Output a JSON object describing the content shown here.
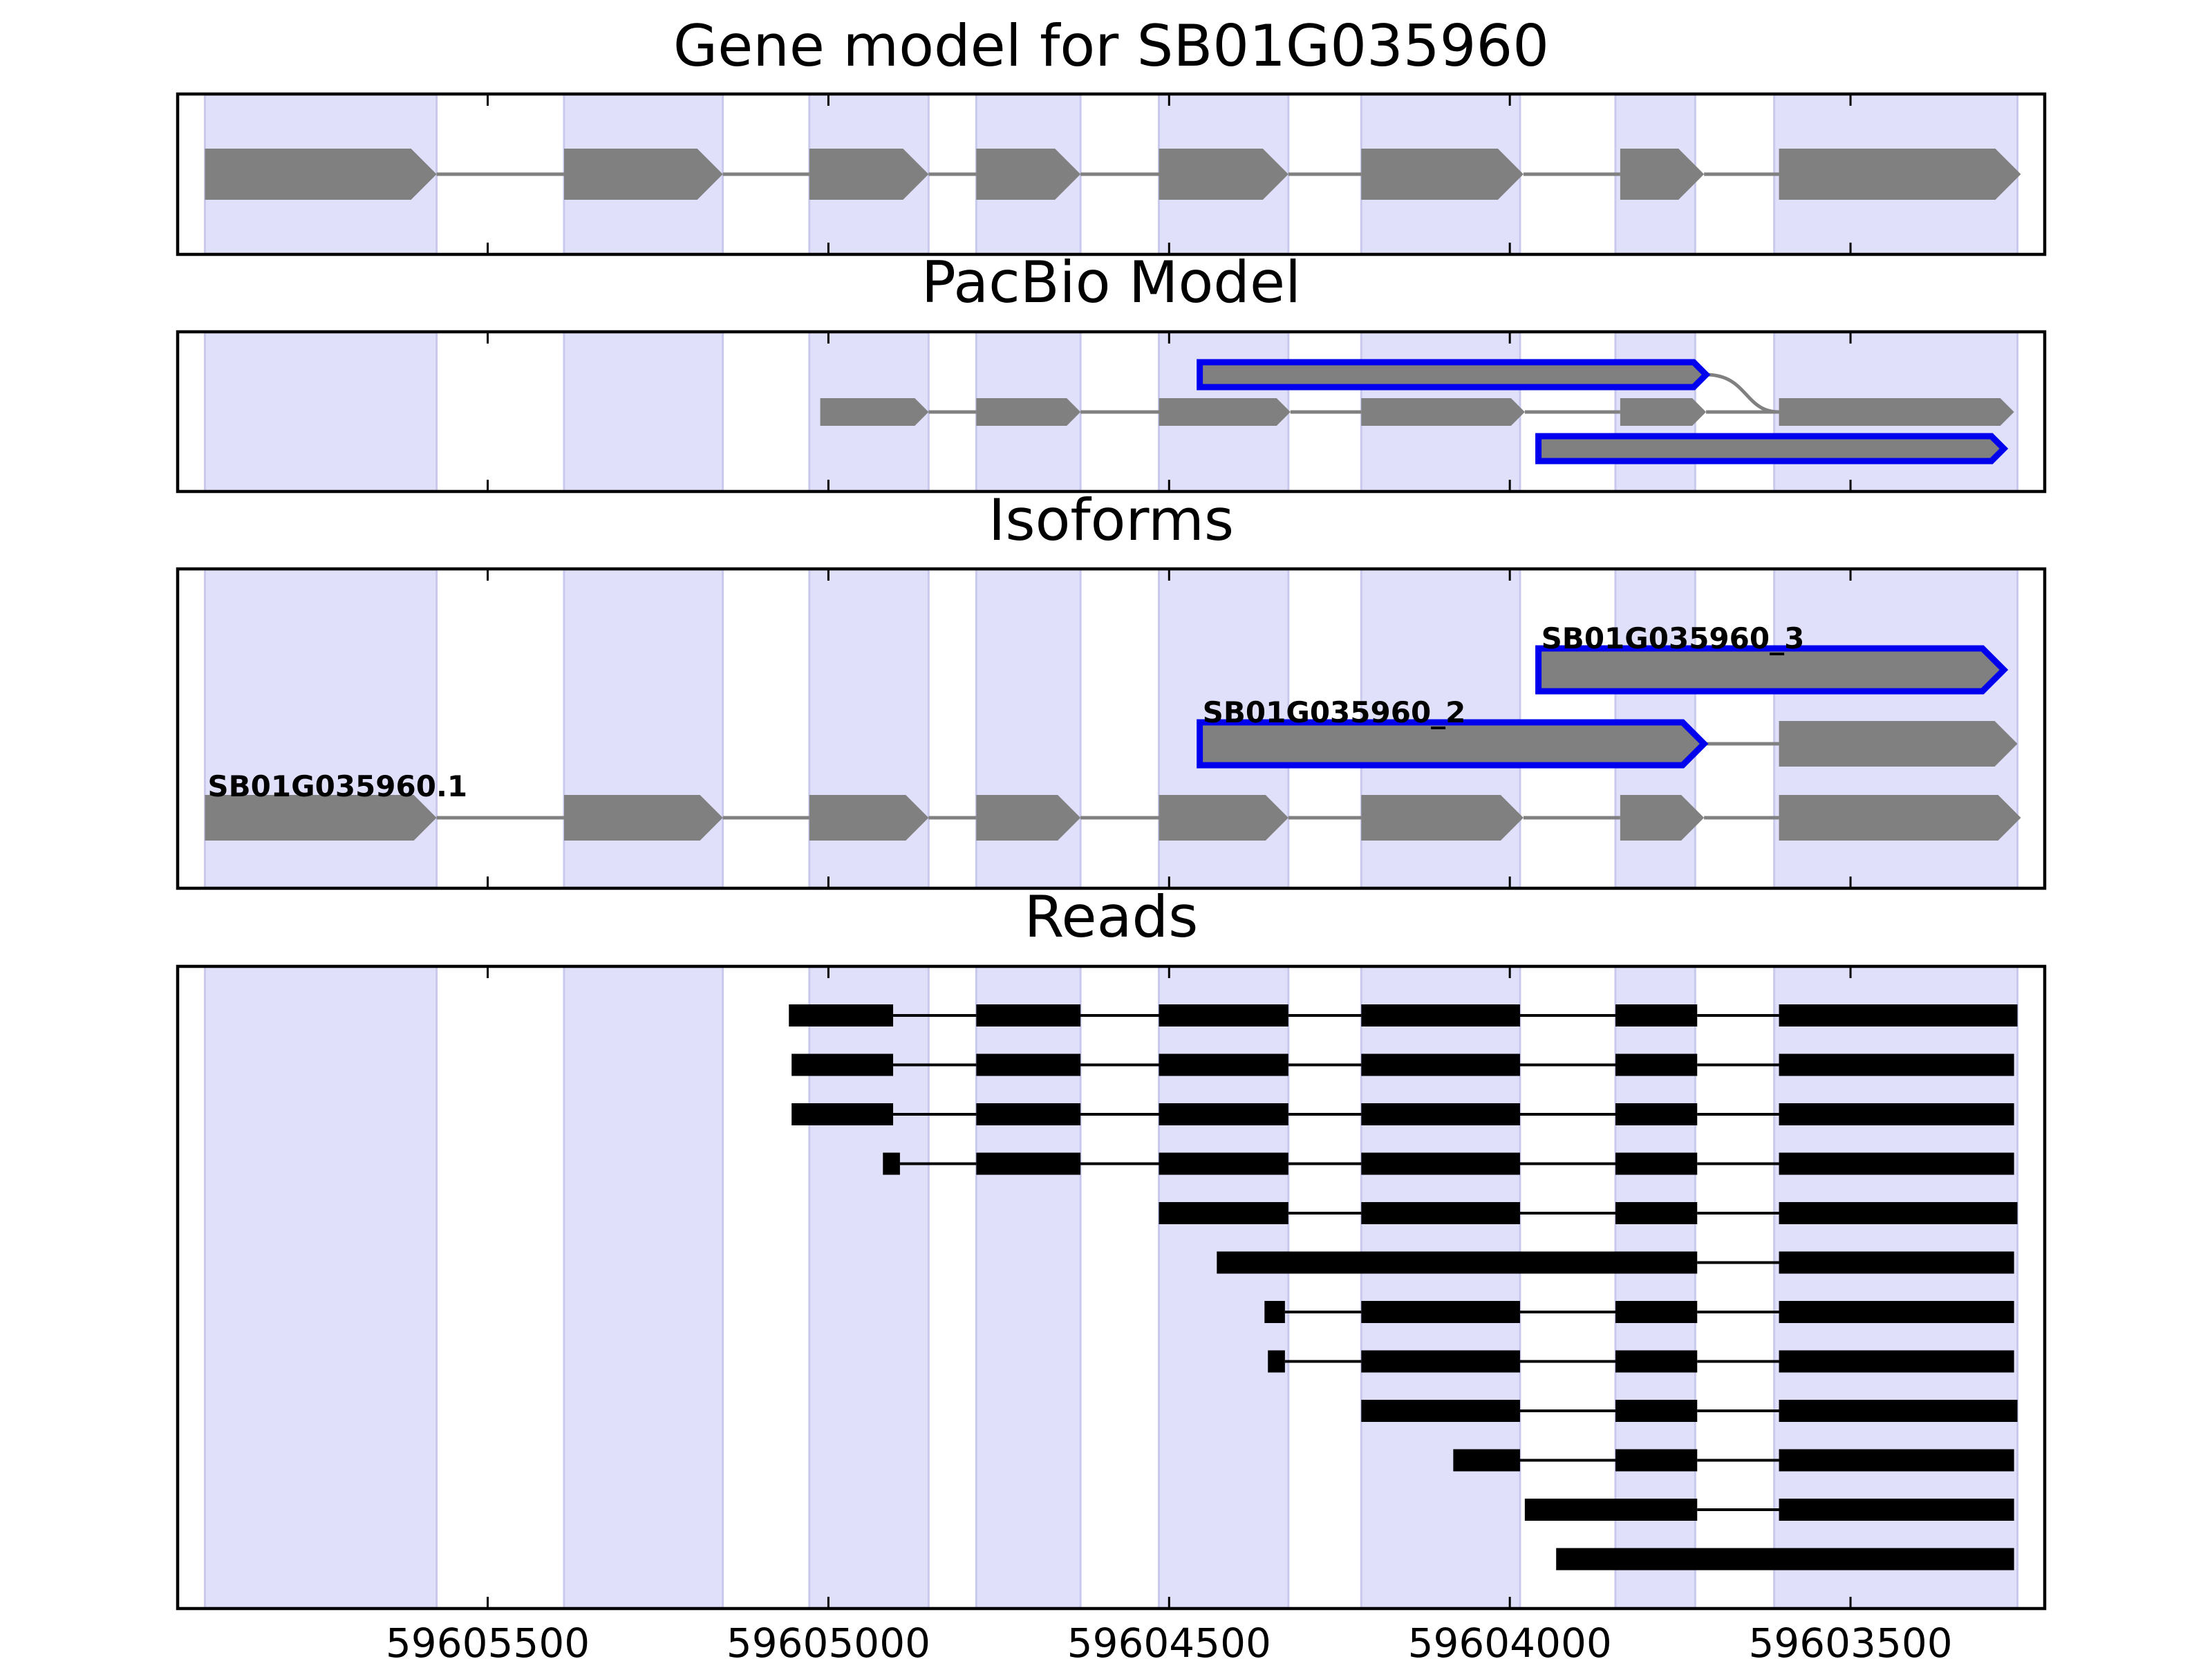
{
  "figure": {
    "panels": [
      {
        "id": "gene_model",
        "title": "Gene model for SB01G035960",
        "tracks": [
          {
            "label": "",
            "style": "model",
            "exons": [
              [
                59605915,
                59605575
              ],
              [
                59605388,
                59605155
              ],
              [
                59605028,
                59604853
              ],
              [
                59604783,
                59604630
              ],
              [
                59604515,
                59604325
              ],
              [
                59604218,
                59603980
              ],
              [
                59603838,
                59603715
              ],
              [
                59603605,
                59603250
              ]
            ]
          }
        ]
      },
      {
        "id": "pacbio_model",
        "title": "PacBio Model",
        "tracks": [
          {
            "label": "",
            "style": "model",
            "exons": [
              [
                59605012,
                59604853
              ],
              [
                59604783,
                59604630
              ],
              [
                59604515,
                59604322
              ],
              [
                59604218,
                59603978
              ],
              [
                59603838,
                59603712
              ],
              [
                59603605,
                59603260
              ]
            ]
          },
          {
            "label": "",
            "style": "highlight",
            "exons": [
              [
                59604455,
                59603712
              ]
            ],
            "splice_to": 59603605
          },
          {
            "label": "",
            "style": "highlight",
            "exons": [
              [
                59603958,
                59603275
              ]
            ]
          }
        ]
      },
      {
        "id": "isoforms",
        "title": "Isoforms",
        "tracks": [
          {
            "label": "SB01G035960.1",
            "style": "model",
            "exons": [
              [
                59605915,
                59605575
              ],
              [
                59605388,
                59605155
              ],
              [
                59605028,
                59604853
              ],
              [
                59604783,
                59604630
              ],
              [
                59604515,
                59604325
              ],
              [
                59604218,
                59603980
              ],
              [
                59603838,
                59603715
              ],
              [
                59603605,
                59603250
              ]
            ]
          },
          {
            "label": "SB01G035960_2",
            "style": "highlight",
            "exons": [
              [
                59604455,
                59603715
              ],
              [
                59603605,
                59603255
              ]
            ],
            "outlined": [
              true,
              false
            ]
          },
          {
            "label": "SB01G035960_3",
            "style": "highlight",
            "exons": [
              [
                59603958,
                59603275
              ]
            ]
          }
        ]
      },
      {
        "id": "reads",
        "title": "Reads",
        "tracks": [
          {
            "label": "",
            "style": "read",
            "exons": [
              [
                59605058,
                59604905
              ],
              [
                59604783,
                59604630
              ],
              [
                59604515,
                59604325
              ],
              [
                59604218,
                59603985
              ],
              [
                59603845,
                59603725
              ],
              [
                59603605,
                59603255
              ]
            ]
          },
          {
            "label": "",
            "style": "read",
            "exons": [
              [
                59605054,
                59604905
              ],
              [
                59604783,
                59604630
              ],
              [
                59604515,
                59604325
              ],
              [
                59604218,
                59603985
              ],
              [
                59603845,
                59603725
              ],
              [
                59603605,
                59603260
              ]
            ]
          },
          {
            "label": "",
            "style": "read",
            "exons": [
              [
                59605054,
                59604905
              ],
              [
                59604783,
                59604630
              ],
              [
                59604515,
                59604325
              ],
              [
                59604218,
                59603985
              ],
              [
                59603845,
                59603725
              ],
              [
                59603605,
                59603260
              ]
            ]
          },
          {
            "label": "",
            "style": "read",
            "exons": [
              [
                59604920,
                59604895
              ],
              [
                59604783,
                59604630
              ],
              [
                59604515,
                59604325
              ],
              [
                59604218,
                59603985
              ],
              [
                59603845,
                59603725
              ],
              [
                59603605,
                59603260
              ]
            ]
          },
          {
            "label": "",
            "style": "read",
            "exons": [
              [
                59604515,
                59604325
              ],
              [
                59604218,
                59603985
              ],
              [
                59603845,
                59603725
              ],
              [
                59603605,
                59603255
              ]
            ]
          },
          {
            "label": "",
            "style": "read",
            "exons": [
              [
                59604430,
                59603725
              ],
              [
                59603605,
                59603260
              ]
            ]
          },
          {
            "label": "",
            "style": "read",
            "exons": [
              [
                59604360,
                59604330
              ],
              [
                59604218,
                59603985
              ],
              [
                59603845,
                59603725
              ],
              [
                59603605,
                59603260
              ]
            ]
          },
          {
            "label": "",
            "style": "read",
            "exons": [
              [
                59604355,
                59604330
              ],
              [
                59604218,
                59603985
              ],
              [
                59603845,
                59603725
              ],
              [
                59603605,
                59603260
              ]
            ]
          },
          {
            "label": "",
            "style": "read",
            "exons": [
              [
                59604218,
                59603985
              ],
              [
                59603845,
                59603725
              ],
              [
                59603605,
                59603255
              ]
            ]
          },
          {
            "label": "",
            "style": "read",
            "exons": [
              [
                59604083,
                59603985
              ],
              [
                59603845,
                59603725
              ],
              [
                59603605,
                59603260
              ]
            ]
          },
          {
            "label": "",
            "style": "read",
            "exons": [
              [
                59603978,
                59603725
              ],
              [
                59603605,
                59603260
              ]
            ]
          },
          {
            "label": "",
            "style": "read",
            "exons": [
              [
                59603932,
                59603260
              ]
            ]
          }
        ]
      }
    ],
    "axis": {
      "xlim": [
        59605955,
        59603215
      ],
      "ticks": [
        59605500,
        59605000,
        59604500,
        59604000,
        59603500
      ],
      "tick_labels": [
        "59605500",
        "59605000",
        "59604500",
        "59604000",
        "59603500"
      ]
    },
    "exon_bands": [
      [
        59605915,
        59605575
      ],
      [
        59605388,
        59605155
      ],
      [
        59605028,
        59604853
      ],
      [
        59604783,
        59604630
      ],
      [
        59604515,
        59604325
      ],
      [
        59604218,
        59603985
      ],
      [
        59603845,
        59603728
      ],
      [
        59603612,
        59603255
      ]
    ],
    "colors": {
      "band": "#e0e0fa",
      "band_edge": "#c9c9ee",
      "model_fill": "#808080",
      "intron": "#808080",
      "highlight_stroke": "#0000ee",
      "read": "#000000",
      "frame": "#000000",
      "text": "#000000"
    }
  }
}
